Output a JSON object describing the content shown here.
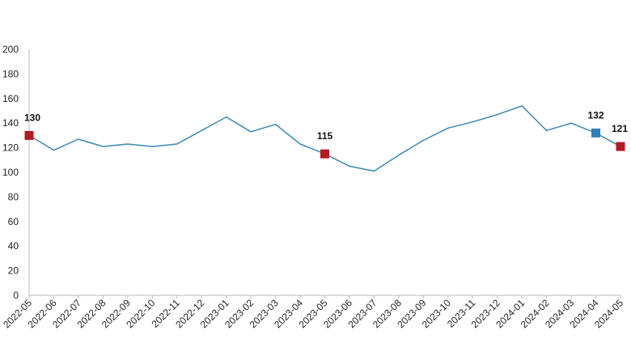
{
  "chart_data": {
    "type": "line",
    "title": "",
    "xlabel": "",
    "ylabel": "",
    "ylim": [
      0,
      200
    ],
    "yticks": [
      0,
      20,
      40,
      60,
      80,
      100,
      120,
      140,
      160,
      180,
      200
    ],
    "grid": false,
    "legend": "none",
    "line_color": "#3a86b4",
    "categories": [
      "2022-05",
      "2022-06",
      "2022-07",
      "2022-08",
      "2022-09",
      "2022-10",
      "2022-11",
      "2022-12",
      "2023-01",
      "2023-02",
      "2023-03",
      "2023-04",
      "2023-05",
      "2023-06",
      "2023-07",
      "2023-08",
      "2023-09",
      "2023-10",
      "2023-11",
      "2023-12",
      "2024-01",
      "2024-02",
      "2024-03",
      "2024-04",
      "2024-05"
    ],
    "series": [
      {
        "values": [
          130,
          118,
          127,
          121,
          123,
          121,
          123,
          134,
          145,
          133,
          139,
          123,
          115,
          105,
          101,
          114,
          126,
          136,
          141,
          147,
          154,
          134,
          140,
          132,
          121
        ]
      }
    ],
    "highlights": [
      {
        "category": "2022-05",
        "value": 130,
        "label": "130",
        "color": "#b01c22"
      },
      {
        "category": "2023-05",
        "value": 115,
        "label": "115",
        "color": "#b01c22"
      },
      {
        "category": "2024-04",
        "value": 132,
        "label": "132",
        "color": "#2f7fb8"
      },
      {
        "category": "2024-05",
        "value": 121,
        "label": "121",
        "color": "#b01c22"
      }
    ]
  }
}
